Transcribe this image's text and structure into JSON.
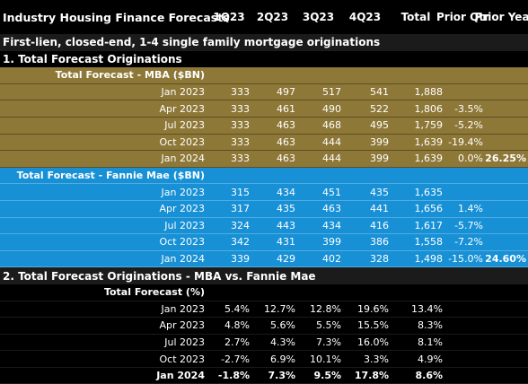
{
  "header": {
    "title": "Industry Housing Finance Forecasts",
    "cols": [
      "1Q23",
      "2Q23",
      "3Q23",
      "4Q23",
      "Total",
      "Prior Qtr",
      "Prior Year"
    ]
  },
  "subtitle": "First-lien, closed-end, 1-4 single family mortgage originations",
  "section1": {
    "title": "1. Total Forecast Originations"
  },
  "mba": {
    "title": "Total Forecast - MBA ($BN)",
    "rows": [
      {
        "label": "Jan 2023",
        "q1": "333",
        "q2": "497",
        "q3": "517",
        "q4": "541",
        "total": "1,888",
        "pq": "",
        "py": ""
      },
      {
        "label": "Apr 2023",
        "q1": "333",
        "q2": "461",
        "q3": "490",
        "q4": "522",
        "total": "1,806",
        "pq": "-3.5%",
        "py": ""
      },
      {
        "label": "Jul 2023",
        "q1": "333",
        "q2": "463",
        "q3": "468",
        "q4": "495",
        "total": "1,759",
        "pq": "-5.2%",
        "py": ""
      },
      {
        "label": "Oct 2023",
        "q1": "333",
        "q2": "463",
        "q3": "444",
        "q4": "399",
        "total": "1,639",
        "pq": "-19.4%",
        "py": ""
      },
      {
        "label": "Jan 2024",
        "q1": "333",
        "q2": "463",
        "q3": "444",
        "q4": "399",
        "total": "1,639",
        "pq": "0.0%",
        "py": "26.25%"
      }
    ]
  },
  "fannie": {
    "title": "Total Forecast - Fannie Mae ($BN)",
    "rows": [
      {
        "label": "Jan 2023",
        "q1": "315",
        "q2": "434",
        "q3": "451",
        "q4": "435",
        "total": "1,635",
        "pq": "",
        "py": ""
      },
      {
        "label": "Apr 2023",
        "q1": "317",
        "q2": "435",
        "q3": "463",
        "q4": "441",
        "total": "1,656",
        "pq": "1.4%",
        "py": ""
      },
      {
        "label": "Jul 2023",
        "q1": "324",
        "q2": "443",
        "q3": "434",
        "q4": "416",
        "total": "1,617",
        "pq": "-5.7%",
        "py": ""
      },
      {
        "label": "Oct 2023",
        "q1": "342",
        "q2": "431",
        "q3": "399",
        "q4": "386",
        "total": "1,558",
        "pq": "-7.2%",
        "py": ""
      },
      {
        "label": "Jan 2024",
        "q1": "339",
        "q2": "429",
        "q3": "402",
        "q4": "328",
        "total": "1,498",
        "pq": "-15.0%",
        "py": "24.60%"
      }
    ]
  },
  "section2": {
    "title": "2. Total Forecast Originations - MBA vs. Fannie Mae"
  },
  "diff": {
    "title": "Total Forecast (%)",
    "rows": [
      {
        "label": "Jan 2023",
        "q1": "5.4%",
        "q2": "12.7%",
        "q3": "12.8%",
        "q4": "19.6%",
        "total": "13.4%"
      },
      {
        "label": "Apr 2023",
        "q1": "4.8%",
        "q2": "5.6%",
        "q3": "5.5%",
        "q4": "15.5%",
        "total": "8.3%"
      },
      {
        "label": "Jul 2023",
        "q1": "2.7%",
        "q2": "4.3%",
        "q3": "7.3%",
        "q4": "16.0%",
        "total": "8.1%"
      },
      {
        "label": "Oct 2023",
        "q1": "-2.7%",
        "q2": "6.9%",
        "q3": "10.1%",
        "q4": "3.3%",
        "total": "4.9%"
      },
      {
        "label": "Jan 2024",
        "q1": "-1.8%",
        "q2": "7.3%",
        "q3": "9.5%",
        "q4": "17.8%",
        "total": "8.6%"
      }
    ]
  },
  "colors": {
    "mba": "#8e7838",
    "fannie": "#1790d6",
    "background": "#000000"
  }
}
